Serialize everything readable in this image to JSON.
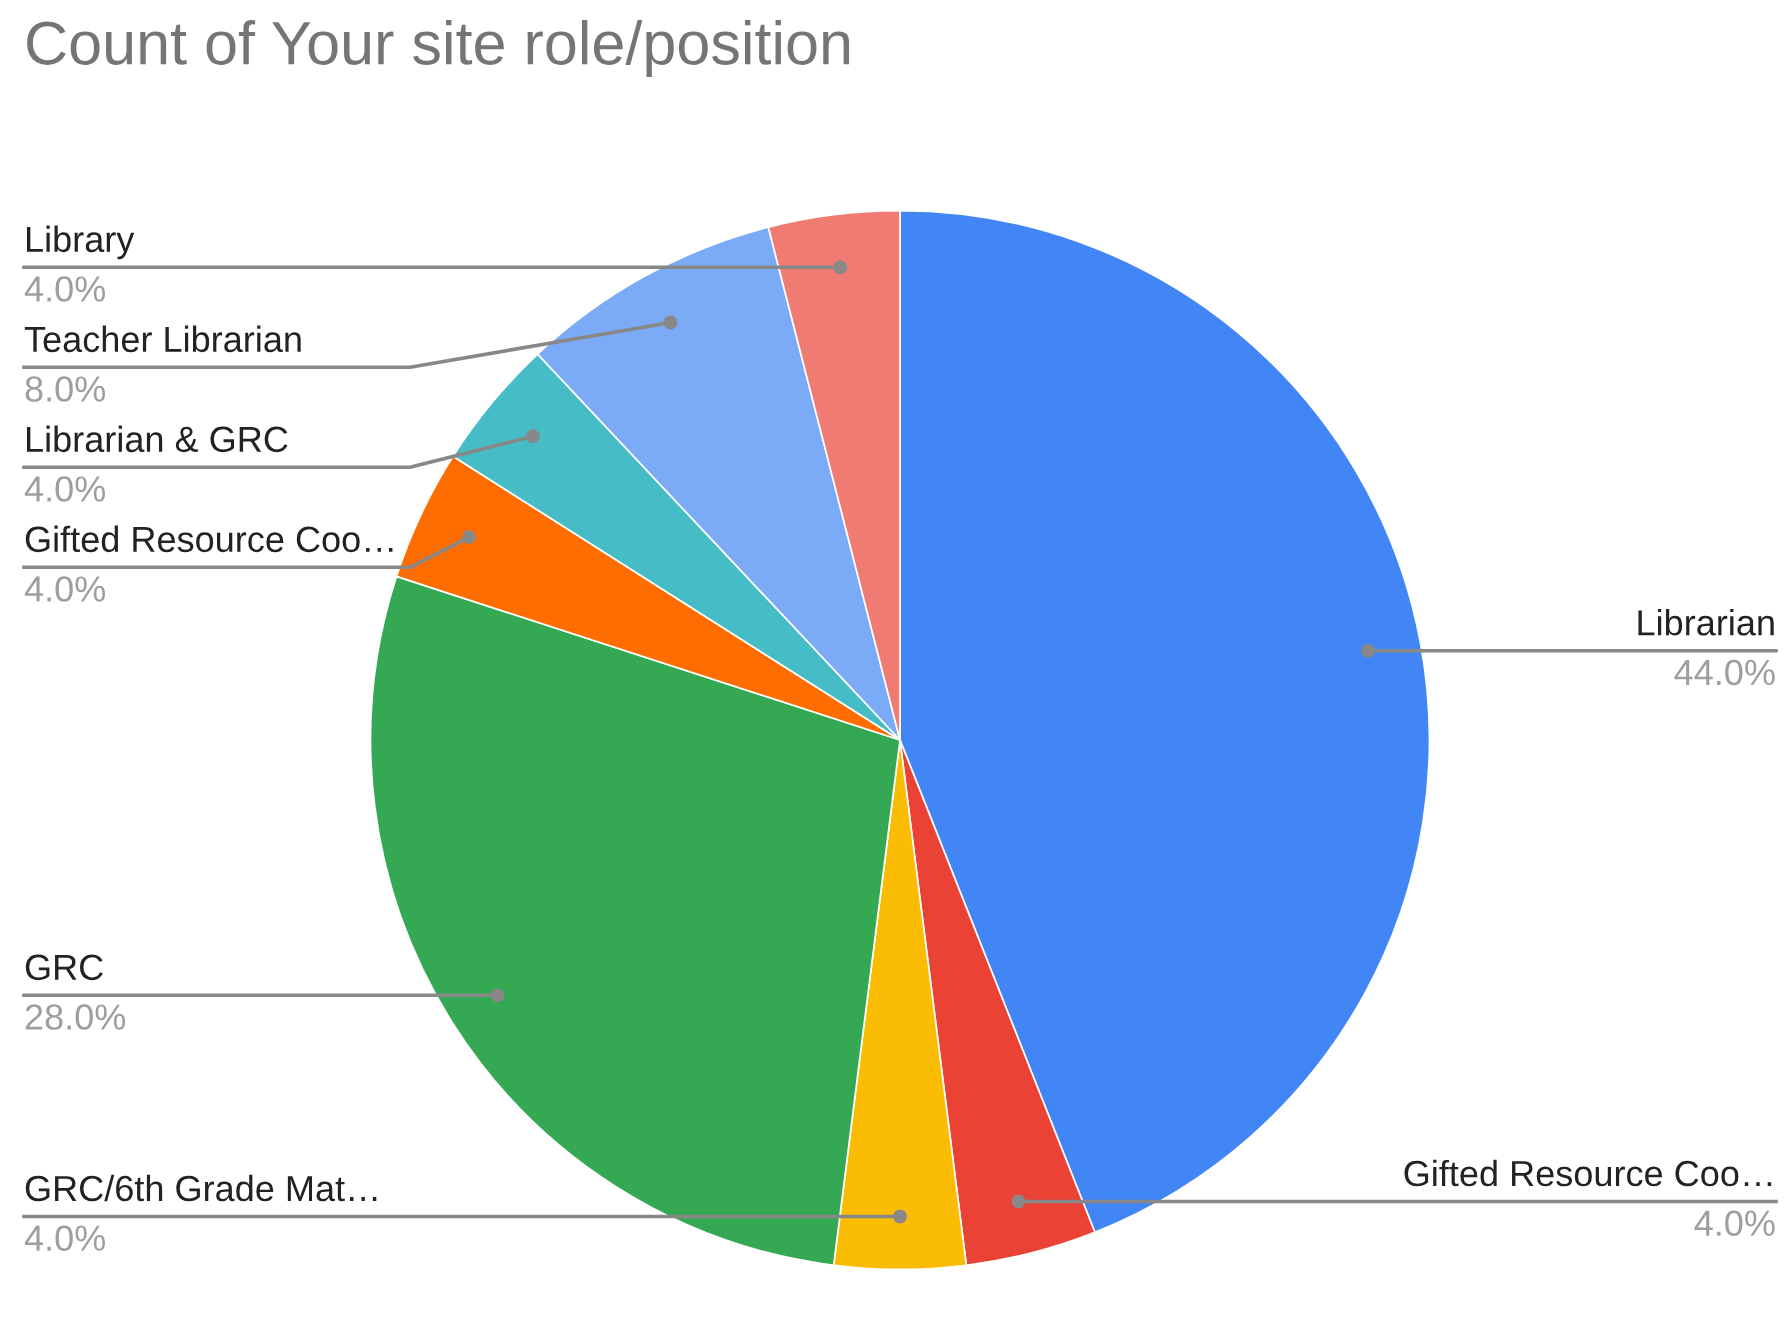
{
  "chart_data": {
    "type": "pie",
    "title": "Count of Your site role/position",
    "categories": [
      "Librarian",
      "Gifted Resource Coo…",
      "GRC/6th Grade Mat…",
      "GRC",
      "Gifted Resource Coo…",
      "Librarian & GRC",
      "Teacher Librarian",
      "Library"
    ],
    "values": [
      44,
      4,
      4,
      28,
      4,
      4,
      8,
      4
    ],
    "value_labels": [
      "44.0%",
      "4.0%",
      "4.0%",
      "28.0%",
      "4.0%",
      "4.0%",
      "8.0%",
      "4.0%"
    ],
    "colors": [
      "#4285f4",
      "#ea4335",
      "#fbbc04",
      "#34a853",
      "#ff6d01",
      "#46bdc6",
      "#7baaf7",
      "#f07b72"
    ],
    "legend": false
  }
}
